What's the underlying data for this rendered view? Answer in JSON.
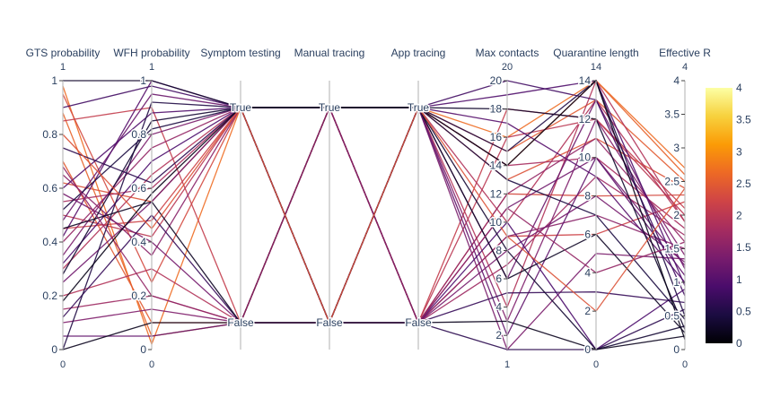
{
  "chart_data": {
    "type": "parallel-coordinates",
    "color_dimension": "Effective R",
    "colorscale": "inferno",
    "colorbar": {
      "range": [
        0,
        4
      ],
      "ticks": [
        0,
        0.5,
        1,
        1.5,
        2,
        2.5,
        3,
        3.5,
        4
      ]
    },
    "dimensions": [
      {
        "label": "GTS probability",
        "kind": "numeric",
        "range": [
          0,
          1
        ],
        "ticks": [
          0,
          0.2,
          0.4,
          0.6,
          0.8,
          1
        ],
        "range_labels": [
          "0",
          "1"
        ]
      },
      {
        "label": "WFH probability",
        "kind": "numeric",
        "range": [
          0,
          1
        ],
        "ticks": [
          0,
          0.2,
          0.4,
          0.6,
          0.8,
          1
        ],
        "range_labels": [
          "0",
          "1"
        ]
      },
      {
        "label": "Symptom testing",
        "kind": "categorical",
        "categories": [
          "False",
          "True"
        ]
      },
      {
        "label": "Manual tracing",
        "kind": "categorical",
        "categories": [
          "False",
          "True"
        ]
      },
      {
        "label": "App tracing",
        "kind": "categorical",
        "categories": [
          "False",
          "True"
        ]
      },
      {
        "label": "Max contacts",
        "kind": "numeric",
        "range": [
          1,
          20
        ],
        "ticks": [
          2,
          4,
          6,
          8,
          10,
          12,
          14,
          16,
          18,
          20
        ],
        "range_labels": [
          "1",
          "20"
        ]
      },
      {
        "label": "Quarantine length",
        "kind": "numeric",
        "range": [
          0,
          14
        ],
        "ticks": [
          0,
          2,
          4,
          6,
          8,
          10,
          12,
          14
        ],
        "range_labels": [
          "0",
          "14"
        ]
      },
      {
        "label": "Effective R",
        "kind": "numeric",
        "range": [
          0,
          4
        ],
        "ticks": [
          0,
          0.5,
          1,
          1.5,
          2,
          2.5,
          3,
          3.5,
          4
        ],
        "range_labels": [
          "0",
          "4"
        ]
      }
    ],
    "rows": [
      [
        0.98,
        0.02,
        1,
        1,
        1,
        16,
        14,
        2.7
      ],
      [
        0.88,
        0.05,
        0,
        1,
        1,
        14,
        14,
        2.6
      ],
      [
        0.7,
        0.1,
        0,
        0,
        1,
        15,
        13,
        2.5
      ],
      [
        0.62,
        0.55,
        1,
        0,
        1,
        13,
        11,
        2.4
      ],
      [
        0.95,
        0.25,
        1,
        1,
        0,
        12,
        8,
        2.3
      ],
      [
        0.45,
        0.48,
        1,
        0,
        0,
        9,
        6,
        2.2
      ],
      [
        0.85,
        0.9,
        0,
        1,
        0,
        18,
        12,
        2.1
      ],
      [
        0.5,
        0.42,
        1,
        1,
        0,
        16,
        12,
        2.0
      ],
      [
        0.2,
        0.3,
        0,
        0,
        1,
        10,
        13,
        1.9
      ],
      [
        0.3,
        0.65,
        1,
        1,
        1,
        4,
        14,
        1.9
      ],
      [
        0.55,
        0.6,
        1,
        0,
        1,
        14,
        10,
        1.8
      ],
      [
        0.15,
        0.2,
        0,
        1,
        0,
        7,
        9,
        1.7
      ],
      [
        0.4,
        0.75,
        1,
        0,
        0,
        12,
        11,
        1.6
      ],
      [
        0.65,
        0.35,
        1,
        1,
        0,
        9,
        7,
        1.5
      ],
      [
        0.1,
        0.15,
        0,
        0,
        1,
        3,
        12,
        1.4
      ],
      [
        0.35,
        0.8,
        1,
        1,
        1,
        1,
        5,
        1.35
      ],
      [
        0.58,
        0.4,
        0,
        1,
        0,
        8,
        8,
        1.3
      ],
      [
        0.25,
        0.55,
        1,
        0,
        0,
        11,
        10,
        1.25
      ],
      [
        0.48,
        0.95,
        1,
        1,
        1,
        6,
        13,
        1.2
      ],
      [
        0.05,
        0.05,
        0,
        0,
        1,
        2,
        10,
        1.1
      ],
      [
        0.42,
        1.0,
        1,
        0,
        1,
        17,
        9,
        1.0
      ],
      [
        0.6,
        0.88,
        1,
        1,
        1,
        19,
        14,
        0.95
      ],
      [
        0.32,
        0.7,
        1,
        0,
        0,
        10,
        0,
        0.9
      ],
      [
        0.9,
        0.98,
        1,
        1,
        1,
        20,
        13,
        0.8
      ],
      [
        0.12,
        0.5,
        0,
        0,
        0,
        5,
        3,
        0.7
      ],
      [
        0.75,
        0.62,
        1,
        1,
        0,
        1,
        0,
        0.6
      ],
      [
        0.0,
        0.92,
        1,
        0,
        1,
        15,
        14,
        0.5
      ],
      [
        0.52,
        0.82,
        1,
        1,
        1,
        13,
        7,
        0.45
      ],
      [
        0.28,
        0.85,
        1,
        0,
        1,
        8,
        0,
        0.35
      ],
      [
        1.0,
        1.0,
        1,
        1,
        1,
        18,
        12,
        0.3
      ],
      [
        0.45,
        0.55,
        0,
        1,
        1,
        6,
        6,
        0.25
      ],
      [
        0.0,
        0.1,
        0,
        0,
        0,
        3,
        0,
        0.2
      ],
      [
        0.68,
        0.2,
        0,
        1,
        0,
        11,
        4,
        1.6
      ],
      [
        0.8,
        0.45,
        1,
        0,
        1,
        9,
        2,
        2.4
      ],
      [
        0.18,
        0.58,
        1,
        1,
        1,
        14,
        14,
        0.15
      ]
    ]
  }
}
